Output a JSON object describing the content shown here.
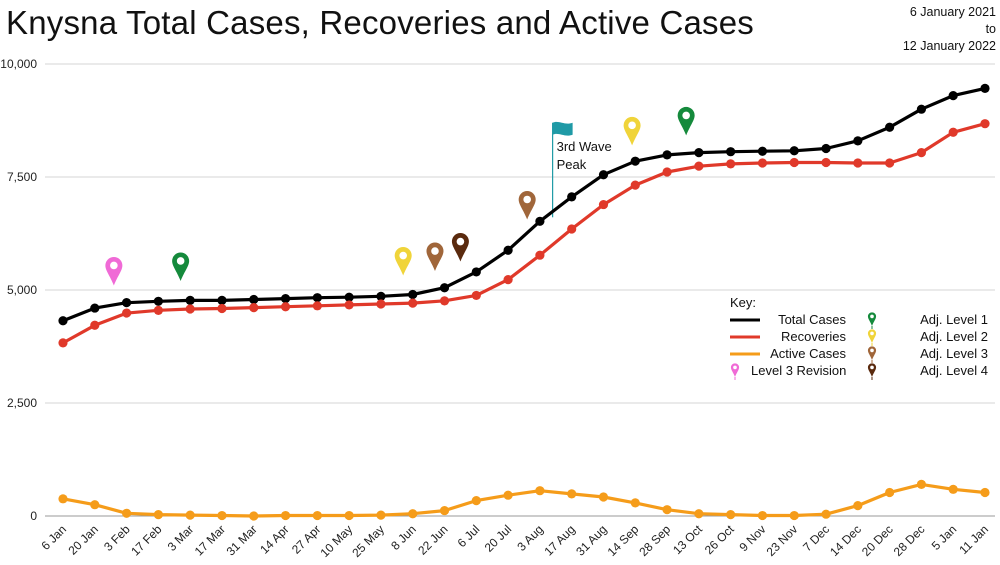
{
  "chart_data": {
    "type": "line",
    "title": "Knysna Total Cases, Recoveries and Active Cases",
    "date_range": [
      "6 January 2021",
      "to",
      "12 January 2022"
    ],
    "categories": [
      "6 Jan",
      "20 Jan",
      "3 Feb",
      "17 Feb",
      "3 Mar",
      "17 Mar",
      "31 Mar",
      "14 Apr",
      "27 Apr",
      "10 May",
      "25 May",
      "8 Jun",
      "22 Jun",
      "6 Jul",
      "20 Jul",
      "3 Aug",
      "17 Aug",
      "31 Aug",
      "14 Sep",
      "28 Sep",
      "13 Oct",
      "26 Oct",
      "9 Nov",
      "23 Nov",
      "7 Dec",
      "14 Dec",
      "20 Dec",
      "28 Dec",
      "5 Jan",
      "11 Jan"
    ],
    "ylim": [
      0,
      10000
    ],
    "yticks": [
      0,
      2500,
      5000,
      7500,
      10000
    ],
    "ytick_labels": [
      "0",
      "2,500",
      "5,000",
      "7,500",
      "10,000"
    ],
    "grid": true,
    "legend_position": "right",
    "series": [
      {
        "name": "Total Cases",
        "color": "#000000",
        "values": [
          4320,
          4600,
          4720,
          4750,
          4770,
          4770,
          4790,
          4810,
          4830,
          4840,
          4860,
          4900,
          5050,
          5400,
          5880,
          6520,
          7060,
          7550,
          7850,
          7990,
          8040,
          8060,
          8070,
          8080,
          8130,
          8300,
          8600,
          9000,
          9300,
          9460
        ]
      },
      {
        "name": "Recoveries",
        "color": "#e0392a",
        "values": [
          3830,
          4220,
          4490,
          4550,
          4580,
          4590,
          4610,
          4630,
          4650,
          4670,
          4690,
          4710,
          4760,
          4880,
          5230,
          5770,
          6350,
          6890,
          7320,
          7610,
          7740,
          7790,
          7810,
          7820,
          7820,
          7810,
          7810,
          8040,
          8490,
          8680
        ]
      },
      {
        "name": "Active Cases",
        "color": "#f59c1a",
        "values": [
          380,
          250,
          60,
          30,
          20,
          10,
          0,
          10,
          10,
          10,
          20,
          50,
          120,
          340,
          460,
          560,
          490,
          420,
          290,
          140,
          50,
          30,
          10,
          10,
          40,
          230,
          520,
          700,
          590,
          520
        ]
      }
    ],
    "markers": [
      {
        "category_index": 1.6,
        "value": 5100,
        "color": "#f06ad6",
        "type": "Level 3 Revision"
      },
      {
        "category_index": 3.7,
        "value": 5200,
        "color": "#158a3c",
        "type": "Adj. Level 1"
      },
      {
        "category_index": 10.7,
        "value": 5320,
        "color": "#f0d43a",
        "type": "Adj. Level 2"
      },
      {
        "category_index": 11.7,
        "value": 5420,
        "color": "#a0663a",
        "type": "Adj. Level 3"
      },
      {
        "category_index": 12.5,
        "value": 5630,
        "color": "#5a2a0e",
        "type": "Adj. Level 4"
      },
      {
        "category_index": 14.6,
        "value": 6560,
        "color": "#a0663a",
        "type": "Adj. Level 3"
      },
      {
        "category_index": 17.9,
        "value": 8200,
        "color": "#f0d43a",
        "type": "Adj. Level 2"
      },
      {
        "category_index": 19.6,
        "value": 8420,
        "color": "#158a3c",
        "type": "Adj. Level 1"
      }
    ],
    "annotation": {
      "lines": [
        "3rd Wave",
        "Peak"
      ],
      "category_index": 15.4,
      "flag_value": 8700,
      "color": "#1f9aa6"
    },
    "key": {
      "title": "Key:",
      "lines": [
        {
          "label": "Total Cases",
          "color": "#000000"
        },
        {
          "label": "Recoveries",
          "color": "#e0392a"
        },
        {
          "label": "Active Cases",
          "color": "#f59c1a"
        }
      ],
      "pins_left": [
        {
          "label": "Level 3 Revision",
          "color": "#f06ad6"
        }
      ],
      "pins_right": [
        {
          "label": "Adj. Level 1",
          "color": "#158a3c"
        },
        {
          "label": "Adj. Level 2",
          "color": "#f0d43a"
        },
        {
          "label": "Adj. Level 3",
          "color": "#a0663a"
        },
        {
          "label": "Adj. Level 4",
          "color": "#5a2a0e"
        }
      ]
    }
  }
}
